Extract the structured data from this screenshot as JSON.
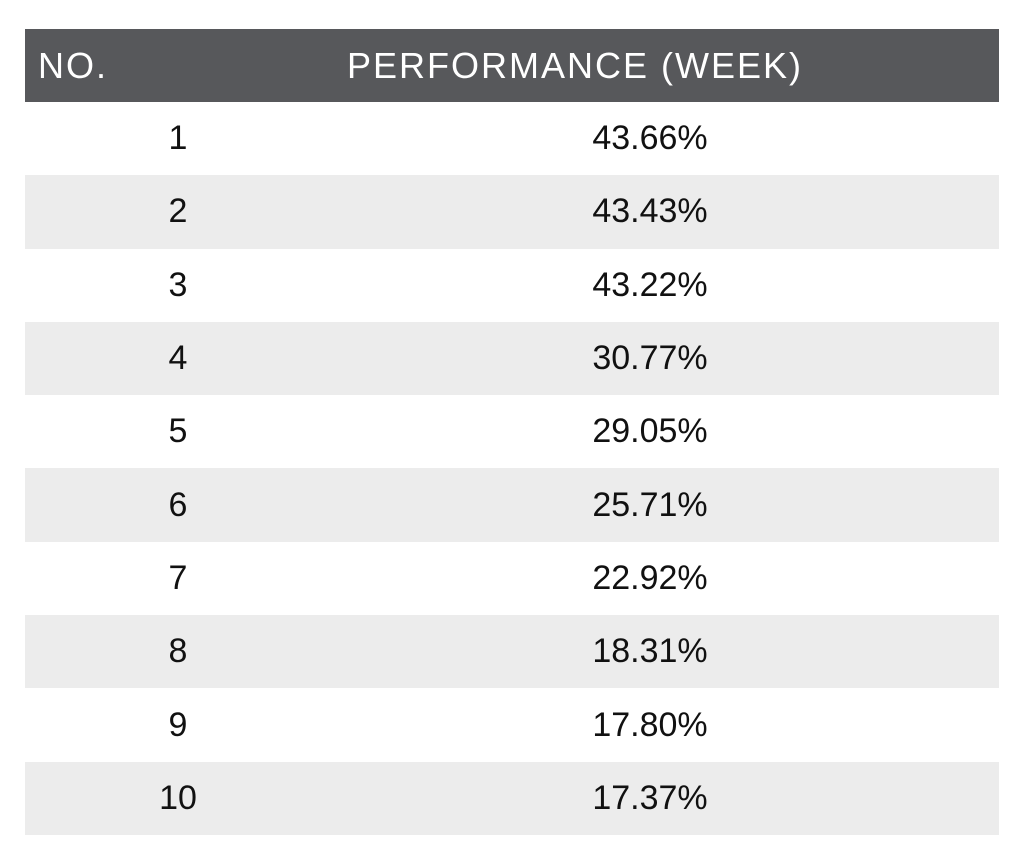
{
  "table": {
    "headers": {
      "no": "NO.",
      "performance": "PERFORMANCE (WEEK)"
    },
    "rows": [
      {
        "no": "1",
        "performance": "43.66%"
      },
      {
        "no": "2",
        "performance": "43.43%"
      },
      {
        "no": "3",
        "performance": "43.22%"
      },
      {
        "no": "4",
        "performance": "30.77%"
      },
      {
        "no": "5",
        "performance": "29.05%"
      },
      {
        "no": "6",
        "performance": "25.71%"
      },
      {
        "no": "7",
        "performance": "22.92%"
      },
      {
        "no": "8",
        "performance": "18.31%"
      },
      {
        "no": "9",
        "performance": "17.80%"
      },
      {
        "no": "10",
        "performance": "17.37%"
      }
    ]
  },
  "colors": {
    "header_bg": "#57585b",
    "header_text": "#ffffff",
    "row_alt_bg": "#ececec",
    "row_bg": "#ffffff"
  }
}
